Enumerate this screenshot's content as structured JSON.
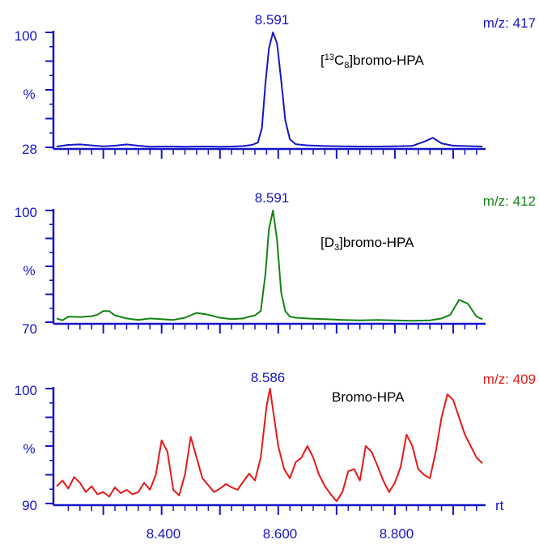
{
  "chart_data": [
    {
      "type": "line",
      "peak_label": "8.591",
      "mz_label": "m/z: 417",
      "compound_label": {
        "open": "[",
        "sup": "13",
        "base": "C",
        "sub": "8",
        "rest": "]bromo-HPA"
      },
      "ylabel": "%",
      "y_tick_labels": [
        "100",
        "28"
      ],
      "ylim": [
        28,
        100
      ],
      "color": "#1515cc",
      "x": [
        8.22,
        8.24,
        8.26,
        8.28,
        8.3,
        8.32,
        8.34,
        8.36,
        8.38,
        8.4,
        8.42,
        8.44,
        8.46,
        8.48,
        8.5,
        8.52,
        8.54,
        8.555,
        8.565,
        8.572,
        8.578,
        8.584,
        8.591,
        8.598,
        8.605,
        8.612,
        8.62,
        8.63,
        8.65,
        8.68,
        8.71,
        8.74,
        8.77,
        8.8,
        8.83,
        8.85,
        8.865,
        8.88,
        8.9,
        8.92,
        8.95
      ],
      "y": [
        28.5,
        29.5,
        29.8,
        29.2,
        28.6,
        29.0,
        29.8,
        29.0,
        28.4,
        28.5,
        28.5,
        28.4,
        28.5,
        28.5,
        28.4,
        28.5,
        28.8,
        29.5,
        31.0,
        40.0,
        68.0,
        90.0,
        100.0,
        93.0,
        70.0,
        45.0,
        33.0,
        30.0,
        29.2,
        28.8,
        28.6,
        28.5,
        28.5,
        28.6,
        28.9,
        31.5,
        34.0,
        30.5,
        29.0,
        28.8,
        28.5
      ]
    },
    {
      "type": "line",
      "peak_label": "8.591",
      "mz_label": "m/z: 412",
      "compound_label": {
        "open": "[",
        "base": "D",
        "sub": "3",
        "rest": "]bromo-HPA"
      },
      "ylabel": "%",
      "y_tick_labels": [
        "100",
        "70"
      ],
      "ylim": [
        70,
        100
      ],
      "color": "#148214",
      "x": [
        8.22,
        8.23,
        8.24,
        8.26,
        8.28,
        8.29,
        8.3,
        8.31,
        8.32,
        8.34,
        8.36,
        8.38,
        8.4,
        8.42,
        8.44,
        8.46,
        8.48,
        8.5,
        8.52,
        8.54,
        8.55,
        8.56,
        8.57,
        8.578,
        8.584,
        8.591,
        8.598,
        8.605,
        8.612,
        8.62,
        8.63,
        8.65,
        8.68,
        8.71,
        8.74,
        8.77,
        8.8,
        8.83,
        8.86,
        8.88,
        8.895,
        8.91,
        8.925,
        8.94,
        8.95
      ],
      "y": [
        71.0,
        70.5,
        71.5,
        71.4,
        71.6,
        72.0,
        73.0,
        73.0,
        71.8,
        71.0,
        70.6,
        71.0,
        70.8,
        70.6,
        71.2,
        72.5,
        72.0,
        71.2,
        70.8,
        71.0,
        71.5,
        71.8,
        73.0,
        83.0,
        95.0,
        100.0,
        92.0,
        78.0,
        73.0,
        71.5,
        71.2,
        71.0,
        70.8,
        70.6,
        70.5,
        70.6,
        70.5,
        70.4,
        70.5,
        71.0,
        72.0,
        76.0,
        75.0,
        71.5,
        70.8
      ]
    },
    {
      "type": "line",
      "peak_label": "8.586",
      "mz_label": "m/z: 409",
      "compound_label": {
        "rest": "Bromo-HPA"
      },
      "ylabel": "%",
      "y_tick_labels": [
        "100",
        "90"
      ],
      "ylim": [
        90,
        100
      ],
      "xlabel": "rt",
      "x_tick_labels": [
        "8.400",
        "8.600",
        "8.800"
      ],
      "xlim": [
        8.22,
        8.95
      ],
      "color": "#e81818",
      "x": [
        8.22,
        8.23,
        8.24,
        8.25,
        8.26,
        8.27,
        8.28,
        8.29,
        8.3,
        8.31,
        8.32,
        8.33,
        8.34,
        8.35,
        8.36,
        8.37,
        8.38,
        8.39,
        8.4,
        8.41,
        8.42,
        8.43,
        8.44,
        8.45,
        8.46,
        8.47,
        8.48,
        8.49,
        8.5,
        8.51,
        8.52,
        8.53,
        8.54,
        8.55,
        8.56,
        8.57,
        8.58,
        8.586,
        8.59,
        8.6,
        8.61,
        8.62,
        8.63,
        8.64,
        8.65,
        8.66,
        8.67,
        8.68,
        8.69,
        8.7,
        8.71,
        8.72,
        8.73,
        8.74,
        8.75,
        8.76,
        8.77,
        8.78,
        8.79,
        8.8,
        8.81,
        8.82,
        8.83,
        8.84,
        8.85,
        8.86,
        8.87,
        8.88,
        8.89,
        8.9,
        8.91,
        8.92,
        8.93,
        8.94,
        8.95
      ],
      "y": [
        91.5,
        92.0,
        91.3,
        92.3,
        91.8,
        91.0,
        91.5,
        90.8,
        91.0,
        90.6,
        91.4,
        90.9,
        91.2,
        90.8,
        91.0,
        91.8,
        91.2,
        92.5,
        95.5,
        94.5,
        91.2,
        90.7,
        92.5,
        95.8,
        94.0,
        92.2,
        91.6,
        91.0,
        91.3,
        91.7,
        91.4,
        91.2,
        91.9,
        92.6,
        92.0,
        94.0,
        98.5,
        100.0,
        98.5,
        95.0,
        93.0,
        92.2,
        93.6,
        94.0,
        95.0,
        94.0,
        92.5,
        91.5,
        90.8,
        90.2,
        91.0,
        92.8,
        93.0,
        92.0,
        95.0,
        94.5,
        93.3,
        92.0,
        91.0,
        91.8,
        93.2,
        96.0,
        95.0,
        93.0,
        92.5,
        92.2,
        94.5,
        97.5,
        99.5,
        99.0,
        97.5,
        96.0,
        95.0,
        94.0,
        93.5
      ]
    }
  ]
}
